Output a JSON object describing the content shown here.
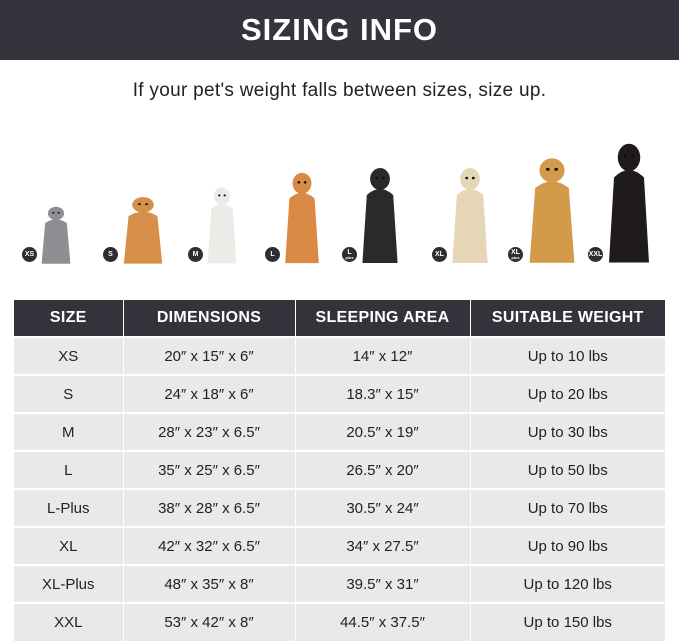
{
  "banner": {
    "title": "SIZING INFO"
  },
  "subtitle": "If your pet's weight falls between sizes, size up.",
  "pets": [
    {
      "badge": "XS",
      "plus": false,
      "animal": "gray cat",
      "color": "#8e8f93"
    },
    {
      "badge": "S",
      "plus": false,
      "animal": "pomeranian",
      "color": "#d7904a"
    },
    {
      "badge": "M",
      "plus": false,
      "animal": "french bulldog",
      "color": "#ecebe8"
    },
    {
      "badge": "L",
      "plus": false,
      "animal": "shiba inu",
      "color": "#d98a45"
    },
    {
      "badge": "L",
      "plus": true,
      "plus_text": "plus",
      "animal": "border collie",
      "color": "#2a2a2a"
    },
    {
      "badge": "XL",
      "plus": false,
      "animal": "labrador",
      "color": "#e6d6b8"
    },
    {
      "badge": "XL",
      "plus": true,
      "plus_text": "plus",
      "animal": "golden retriever",
      "color": "#d49a4c"
    },
    {
      "badge": "XXL",
      "plus": false,
      "animal": "doberman",
      "color": "#1f1b1a"
    }
  ],
  "table": {
    "headers": [
      "SIZE",
      "DIMENSIONS",
      "SLEEPING AREA",
      "SUITABLE WEIGHT"
    ],
    "rows": [
      [
        "XS",
        "20″ x 15″ x 6″",
        "14″ x 12″",
        "Up to 10 lbs"
      ],
      [
        "S",
        "24″ x 18″ x 6″",
        "18.3″ x 15″",
        "Up to 20 lbs"
      ],
      [
        "M",
        "28″ x 23″ x 6.5″",
        "20.5″ x 19″",
        "Up to 30 lbs"
      ],
      [
        "L",
        "35″ x 25″ x 6.5″",
        "26.5″ x 20″",
        "Up to 50 lbs"
      ],
      [
        "L-Plus",
        "38″ x 28″ x 6.5″",
        "30.5″ x 24″",
        "Up to 70 lbs"
      ],
      [
        "XL",
        "42″ x 32″ x 6.5″",
        "34″ x 27.5″",
        "Up to 90 lbs"
      ],
      [
        "XL-Plus",
        "48″ x 35″ x 8″",
        "39.5″ x 31″",
        "Up to 120 lbs"
      ],
      [
        "XXL",
        "53″ x 42″ x 8″",
        "44.5″ x 37.5″",
        "Up to 150 lbs"
      ]
    ]
  }
}
